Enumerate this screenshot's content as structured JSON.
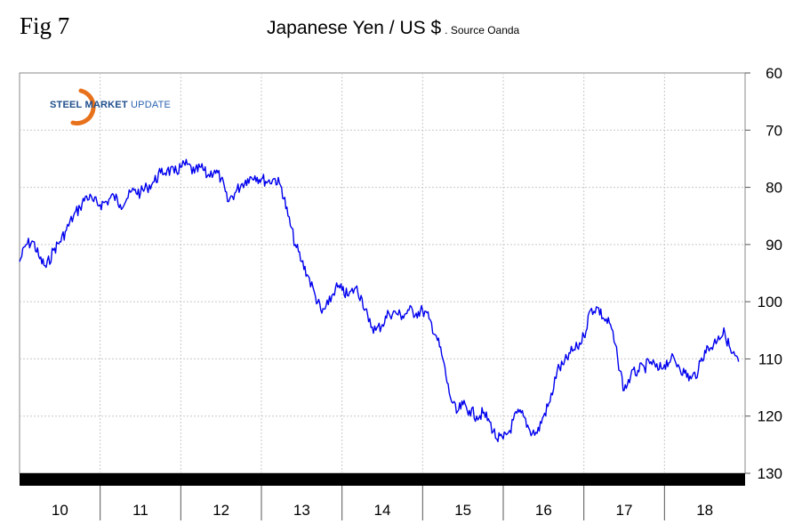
{
  "figure_label": "Fig 7",
  "title": "Japanese Yen / US $",
  "source": ". Source Oanda",
  "logo": {
    "strong": "STEEL MARKET",
    "light": " UPDATE"
  },
  "colors": {
    "line": "#0000ee",
    "grid": "#c8c8c8",
    "bar": "#000000",
    "logo_arc": "#e8721c"
  },
  "chart_data": {
    "type": "line",
    "title": "Japanese Yen / US $",
    "xlabel": "",
    "ylabel": "",
    "y_axis": {
      "position": "right",
      "inverted": true,
      "ylim": [
        60,
        130
      ],
      "ticks": [
        60,
        70,
        80,
        90,
        100,
        110,
        120,
        130
      ]
    },
    "x_axis": {
      "xlim": [
        2009.5,
        2018.5
      ],
      "categories": [
        "10",
        "11",
        "12",
        "13",
        "14",
        "15",
        "16",
        "17",
        "18"
      ]
    },
    "grid": true,
    "series": [
      {
        "x": [
          2009.5,
          2009.58,
          2009.67,
          2009.75,
          2009.83,
          2009.92,
          2010.0,
          2010.08,
          2010.17,
          2010.25,
          2010.33,
          2010.42,
          2010.5,
          2010.58,
          2010.67,
          2010.75,
          2010.83,
          2010.92,
          2011.0,
          2011.08,
          2011.17,
          2011.25,
          2011.33,
          2011.42,
          2011.5,
          2011.58,
          2011.67,
          2011.75,
          2011.83,
          2011.92,
          2012.0,
          2012.08,
          2012.17,
          2012.25,
          2012.33,
          2012.42,
          2012.5,
          2012.58,
          2012.67,
          2012.75,
          2012.83,
          2012.92,
          2013.0,
          2013.08,
          2013.17,
          2013.25,
          2013.33,
          2013.42,
          2013.5,
          2013.58,
          2013.67,
          2013.75,
          2013.83,
          2013.92,
          2014.0,
          2014.08,
          2014.17,
          2014.25,
          2014.33,
          2014.42,
          2014.5,
          2014.58,
          2014.67,
          2014.75,
          2014.83,
          2014.92,
          2015.0,
          2015.08,
          2015.17,
          2015.25,
          2015.33,
          2015.42,
          2015.5,
          2015.58,
          2015.67,
          2015.75,
          2015.83,
          2015.92,
          2016.0,
          2016.08,
          2016.17,
          2016.25,
          2016.33,
          2016.42,
          2016.5,
          2016.58,
          2016.67,
          2016.75,
          2016.83,
          2016.92,
          2017.0,
          2017.08,
          2017.17,
          2017.25,
          2017.33,
          2017.42,
          2017.5,
          2017.58,
          2017.67,
          2017.75,
          2017.83,
          2017.92,
          2018.0,
          2018.08,
          2018.17,
          2018.25,
          2018.33,
          2018.42
        ],
        "values": [
          93.0,
          90.0,
          89.5,
          92.5,
          94.0,
          91.0,
          89.5,
          87.5,
          85.0,
          83.5,
          81.5,
          82.5,
          83.0,
          82.5,
          81.5,
          83.0,
          82.0,
          80.5,
          81.0,
          80.0,
          79.0,
          77.5,
          77.0,
          77.5,
          76.5,
          76.0,
          77.5,
          76.5,
          78.0,
          77.0,
          78.5,
          82.5,
          81.0,
          79.5,
          78.5,
          78.0,
          78.5,
          79.0,
          78.5,
          80.0,
          85.0,
          90.0,
          93.0,
          95.5,
          99.0,
          102.0,
          100.5,
          97.5,
          98.0,
          99.0,
          97.5,
          99.5,
          103.5,
          105.0,
          104.0,
          102.0,
          102.0,
          102.5,
          101.5,
          102.0,
          101.5,
          103.0,
          106.0,
          110.0,
          116.0,
          119.5,
          118.0,
          119.0,
          120.0,
          119.5,
          121.0,
          124.0,
          124.0,
          122.5,
          119.5,
          120.0,
          122.5,
          123.0,
          120.0,
          117.5,
          112.0,
          111.0,
          109.0,
          108.0,
          106.0,
          101.5,
          101.0,
          103.0,
          104.0,
          110.0,
          115.5,
          113.0,
          112.0,
          111.5,
          110.5,
          112.0,
          111.0,
          110.0,
          111.0,
          112.5,
          113.5,
          112.0,
          108.5,
          108.0,
          106.0,
          105.5,
          109.0,
          110.5
        ]
      }
    ]
  }
}
